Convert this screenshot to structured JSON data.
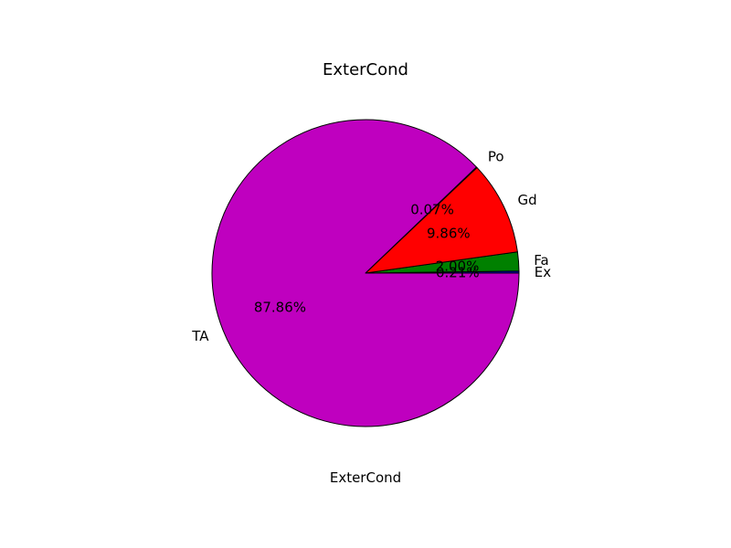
{
  "chart_data": {
    "type": "pie",
    "title": "ExterCond",
    "xlabel": "ExterCond",
    "categories": [
      "Ex",
      "Fa",
      "Gd",
      "Po",
      "TA"
    ],
    "values": [
      0.21,
      2.0,
      9.86,
      0.07,
      87.86
    ],
    "percent_labels": [
      "0.21%",
      "2.00%",
      "9.86%",
      "0.07%",
      "87.86%"
    ],
    "colors": [
      "#0000bf",
      "#008000",
      "#ff0000",
      "#00bfbf",
      "#bf00bf"
    ],
    "start_angle_deg": 0,
    "direction": "counterclockwise",
    "legend": "none"
  }
}
